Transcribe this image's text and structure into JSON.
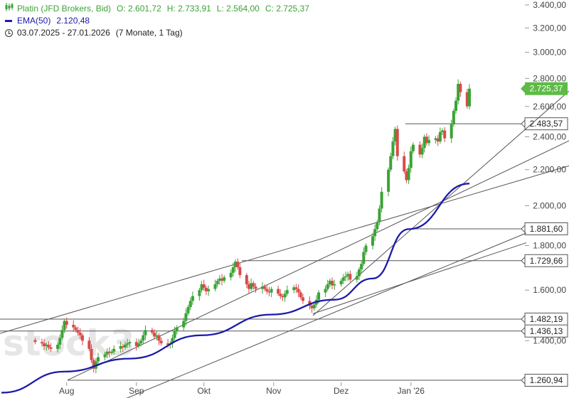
{
  "legend": {
    "instrument": "Platin (JFD Brokers, Bid)",
    "open": "O: 2.601,72",
    "high": "H: 2.733,91",
    "low": "L: 2.564,00",
    "close": "C: 2.725,37",
    "ema_label": "EMA(50)",
    "ema_value": "2.120,48",
    "range": "03.07.2025 - 27.01.2026",
    "period": "(7 Monate, 1 Tag)"
  },
  "watermark": "stock3",
  "colors": {
    "up": "#3aa335",
    "down": "#d94a4a",
    "ema": "#1c1aa8",
    "last_price_badge": "#5dbb45",
    "line": "#555555"
  },
  "chart_data": {
    "type": "candlestick",
    "title": "Platin (JFD Brokers, Bid)",
    "y_tick_labels": [
      "3.400,00",
      "3.200,00",
      "3.000,00",
      "2.800,00",
      "2.600,00",
      "2.400,00",
      "2.200,00",
      "2.000,00",
      "1.800,00",
      "1.600,00",
      "1.400,00"
    ],
    "y_ticks": [
      3400,
      3200,
      3000,
      2800,
      2600,
      2400,
      2200,
      2000,
      1800,
      1600,
      1400
    ],
    "scale": "log",
    "x_tick_labels": [
      "Aug",
      "Sep",
      "Okt",
      "Nov",
      "Dez",
      "Jan '26"
    ],
    "price_levels": [
      {
        "label": "2.483,57",
        "value": 2483.57
      },
      {
        "label": "1.881,60",
        "value": 1881.6
      },
      {
        "label": "1.729,66",
        "value": 1729.66
      },
      {
        "label": "1.482,19",
        "value": 1482.19
      },
      {
        "label": "1.436,13",
        "value": 1436.13
      },
      {
        "label": "1.260,94",
        "value": 1260.94
      }
    ],
    "last_price": {
      "label": "2.725,37",
      "value": 2725.37
    },
    "ema_series_sample": [
      {
        "date": "2025-07-03",
        "value": 1220
      },
      {
        "date": "2025-07-31",
        "value": 1290
      },
      {
        "date": "2025-08-29",
        "value": 1335
      },
      {
        "date": "2025-09-30",
        "value": 1420
      },
      {
        "date": "2025-10-31",
        "value": 1500
      },
      {
        "date": "2025-11-28",
        "value": 1560
      },
      {
        "date": "2025-12-15",
        "value": 1650
      },
      {
        "date": "2025-12-31",
        "value": 1880
      },
      {
        "date": "2026-01-27",
        "value": 2120.48
      }
    ],
    "closes": [
      1395,
      1390,
      1380,
      1385,
      1375,
      1370,
      1385,
      1410,
      1440,
      1475,
      1460,
      1450,
      1440,
      1430,
      1420,
      1400,
      1370,
      1330,
      1300,
      1325,
      1340,
      1350,
      1360,
      1355,
      1360,
      1370,
      1380,
      1375,
      1385,
      1390,
      1395,
      1380,
      1390,
      1400,
      1420,
      1440,
      1430,
      1415,
      1420,
      1400,
      1390,
      1385,
      1390,
      1410,
      1435,
      1450,
      1475,
      1505,
      1530,
      1555,
      1575,
      1600,
      1625,
      1610,
      1595,
      1605,
      1625,
      1640,
      1650,
      1640,
      1655,
      1675,
      1700,
      1725,
      1700,
      1665,
      1625,
      1605,
      1630,
      1615,
      1605,
      1615,
      1605,
      1595,
      1590,
      1605,
      1585,
      1575,
      1570,
      1585,
      1600,
      1612,
      1605,
      1590,
      1570,
      1555,
      1535,
      1525,
      1540,
      1560,
      1590,
      1605,
      1625,
      1640,
      1620,
      1625,
      1640,
      1655,
      1660,
      1670,
      1645,
      1660,
      1690,
      1715,
      1770,
      1800,
      1845,
      1880,
      1915,
      1985,
      2075,
      2200,
      2280,
      2370,
      2450,
      2280,
      2190,
      2140,
      2210,
      2310,
      2350,
      2290,
      2330,
      2400,
      2360,
      2380,
      2390,
      2370,
      2430,
      2440,
      2390,
      2480,
      2570,
      2640,
      2760,
      2700,
      2601,
      2725
    ],
    "last_date": "2026-01-27"
  }
}
